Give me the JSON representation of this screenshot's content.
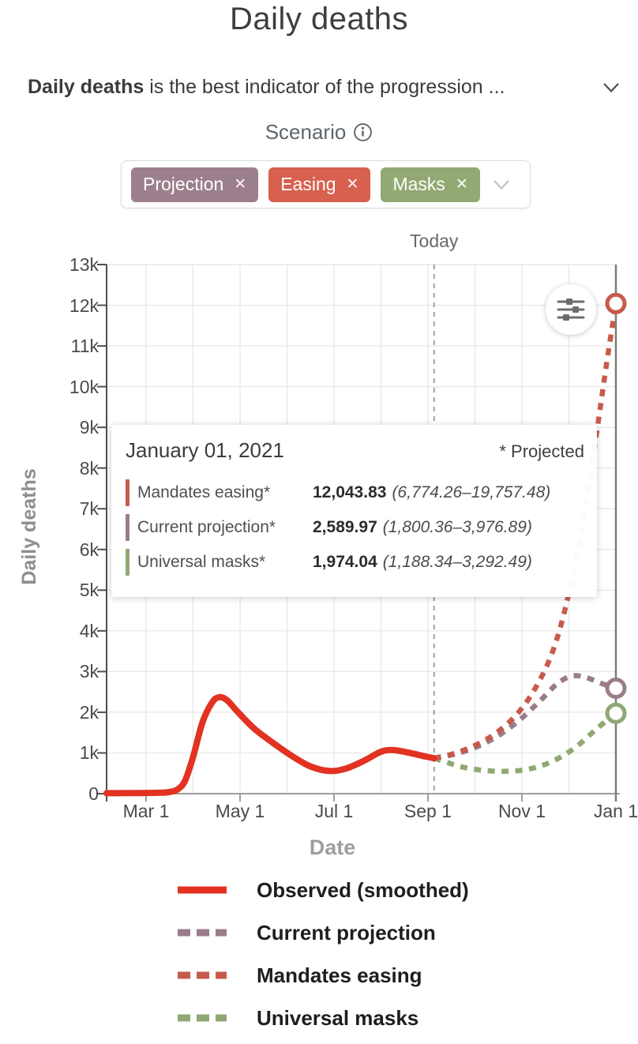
{
  "header": {
    "title": "Daily deaths",
    "description_bold": "Daily deaths",
    "description_rest": " is the best indicator of the progression ..."
  },
  "scenario": {
    "label": "Scenario",
    "chips": [
      {
        "id": "projection",
        "label": "Projection",
        "color": "#9c7f8c"
      },
      {
        "id": "easing",
        "label": "Easing",
        "color": "#d7604f"
      },
      {
        "id": "masks",
        "label": "Masks",
        "color": "#92a973"
      }
    ]
  },
  "icons": {
    "close": "✕"
  },
  "chart_data": {
    "type": "line",
    "title": "Daily deaths",
    "xlabel": "Date",
    "ylabel": "Daily deaths",
    "x_unit": "months since Mar 1, 2020",
    "xlim": [
      -0.84,
      10
    ],
    "ylim": [
      0,
      13000
    ],
    "grid": true,
    "x_ticks": [
      {
        "label": "Mar 1",
        "x": 0
      },
      {
        "label": "May 1",
        "x": 2
      },
      {
        "label": "Jul 1",
        "x": 4
      },
      {
        "label": "Sep 1",
        "x": 6
      },
      {
        "label": "Nov 1",
        "x": 8
      },
      {
        "label": "Jan 1",
        "x": 10
      }
    ],
    "y_ticks": [
      {
        "label": "0",
        "v": 0
      },
      {
        "label": "1k",
        "v": 1000
      },
      {
        "label": "2k",
        "v": 2000
      },
      {
        "label": "3k",
        "v": 3000
      },
      {
        "label": "4k",
        "v": 4000
      },
      {
        "label": "5k",
        "v": 5000
      },
      {
        "label": "6k",
        "v": 6000
      },
      {
        "label": "7k",
        "v": 7000
      },
      {
        "label": "8k",
        "v": 8000
      },
      {
        "label": "9k",
        "v": 9000
      },
      {
        "label": "10k",
        "v": 10000
      },
      {
        "label": "11k",
        "v": 11000
      },
      {
        "label": "12k",
        "v": 12000
      },
      {
        "label": "13k",
        "v": 13000
      }
    ],
    "today": {
      "label": "Today",
      "x": 6.13
    },
    "colors": {
      "grid": "#e9e9e9",
      "y_axis": "#4f4f4f",
      "x_axis": "#9d9d9d",
      "right_edge": "#7c7c7c",
      "today_line": "#979797"
    },
    "series": [
      {
        "name": "Universal masks",
        "color": "#90a873",
        "style": "dashed",
        "end_marker": true,
        "points": [
          [
            6.13,
            872
          ],
          [
            6.45,
            748
          ],
          [
            6.8,
            636
          ],
          [
            7.2,
            572
          ],
          [
            7.6,
            549
          ],
          [
            8.0,
            576
          ],
          [
            8.4,
            682
          ],
          [
            8.8,
            882
          ],
          [
            9.2,
            1192
          ],
          [
            9.6,
            1605
          ],
          [
            10,
            1974
          ]
        ]
      },
      {
        "name": "Current projection",
        "color": "#9a7d8b",
        "style": "dashed",
        "end_marker": true,
        "points": [
          [
            6.13,
            872
          ],
          [
            6.55,
            965
          ],
          [
            7.0,
            1130
          ],
          [
            7.45,
            1390
          ],
          [
            7.9,
            1760
          ],
          [
            8.35,
            2240
          ],
          [
            8.75,
            2700
          ],
          [
            9.05,
            2885
          ],
          [
            9.35,
            2860
          ],
          [
            9.7,
            2705
          ],
          [
            10,
            2590
          ]
        ]
      },
      {
        "name": "Mandates easing",
        "color": "#c75b4b",
        "style": "dashed",
        "end_marker": true,
        "points": [
          [
            6.13,
            872
          ],
          [
            6.55,
            985
          ],
          [
            7.0,
            1185
          ],
          [
            7.45,
            1490
          ],
          [
            7.9,
            1960
          ],
          [
            8.3,
            2620
          ],
          [
            8.65,
            3480
          ],
          [
            8.95,
            4680
          ],
          [
            9.25,
            6350
          ],
          [
            9.55,
            8550
          ],
          [
            9.8,
            10550
          ],
          [
            10,
            12044
          ]
        ]
      },
      {
        "name": "Observed (smoothed)",
        "color": "#e13222",
        "style": "solid",
        "end_marker": false,
        "points": [
          [
            -0.84,
            12
          ],
          [
            -0.45,
            13
          ],
          [
            -0.1,
            16
          ],
          [
            0.25,
            22
          ],
          [
            0.5,
            40
          ],
          [
            0.68,
            110
          ],
          [
            0.83,
            320
          ],
          [
            1.0,
            900
          ],
          [
            1.2,
            1750
          ],
          [
            1.4,
            2230
          ],
          [
            1.55,
            2370
          ],
          [
            1.72,
            2300
          ],
          [
            1.95,
            2010
          ],
          [
            2.3,
            1600
          ],
          [
            2.7,
            1250
          ],
          [
            3.1,
            930
          ],
          [
            3.5,
            670
          ],
          [
            3.9,
            556
          ],
          [
            4.25,
            615
          ],
          [
            4.65,
            815
          ],
          [
            5.0,
            1030
          ],
          [
            5.25,
            1072
          ],
          [
            5.6,
            1005
          ],
          [
            5.95,
            912
          ],
          [
            6.13,
            872
          ]
        ]
      }
    ]
  },
  "tooltip": {
    "date": "January 01, 2021",
    "note": "* Projected",
    "rows": [
      {
        "label": "Mandates easing*",
        "value": "12,043.83",
        "range": "(6,774.26–19,757.48)",
        "color": "#c75b4b"
      },
      {
        "label": "Current projection*",
        "value": "2,589.97",
        "range": "(1,800.36–3,976.89)",
        "color": "#9a7d8b"
      },
      {
        "label": "Universal masks*",
        "value": "1,974.04",
        "range": "(1,188.34–3,292.49)",
        "color": "#90a873"
      }
    ]
  },
  "legend": {
    "items": [
      {
        "label": "Observed (smoothed)",
        "color": "#e13222",
        "style": "solid"
      },
      {
        "label": "Current projection",
        "color": "#9a7d8b",
        "style": "dashed"
      },
      {
        "label": "Mandates easing",
        "color": "#c75b4b",
        "style": "dashed"
      },
      {
        "label": "Universal masks",
        "color": "#90a873",
        "style": "dashed"
      }
    ]
  }
}
